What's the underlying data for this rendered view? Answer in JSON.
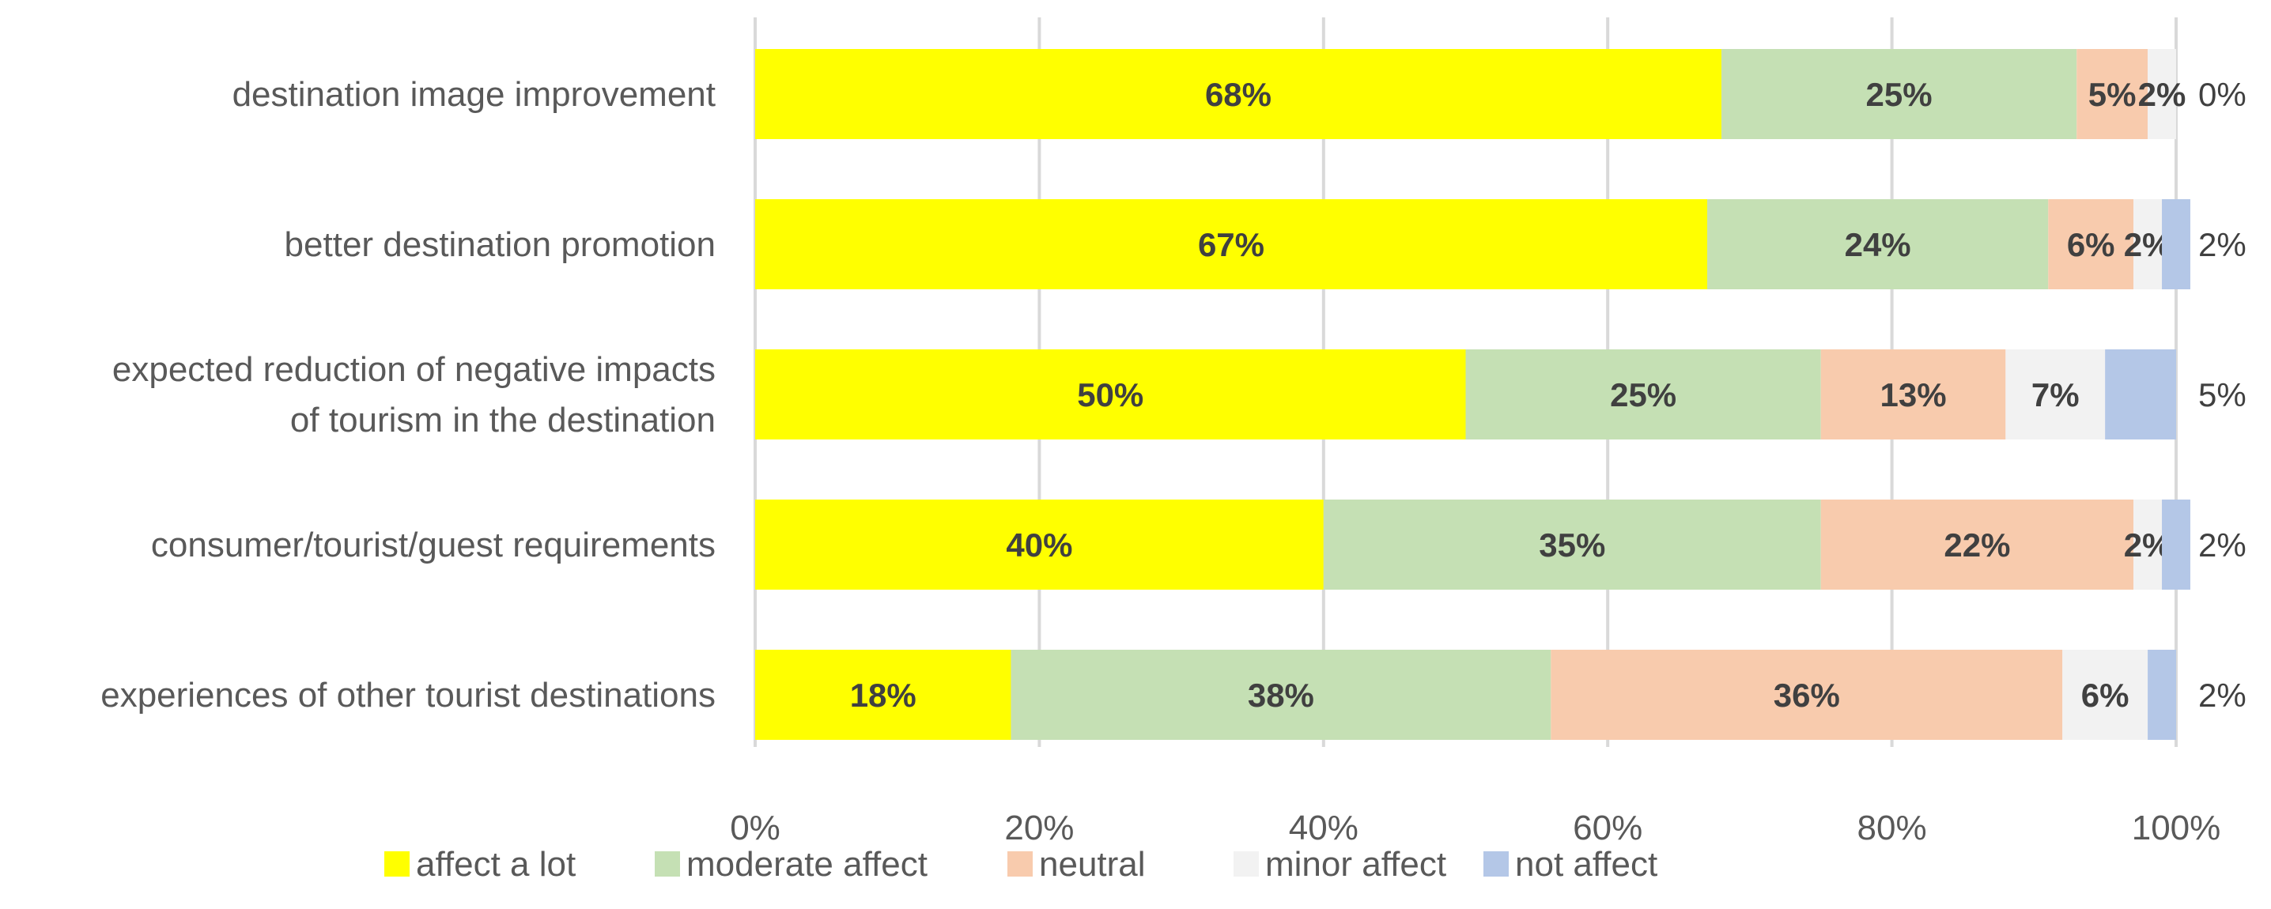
{
  "chart_data": {
    "type": "bar",
    "orientation": "horizontal",
    "stacked": true,
    "categories": [
      [
        "destination image improvement"
      ],
      [
        "better destination promotion"
      ],
      [
        "expected reduction of negative impacts",
        "of tourism in the destination"
      ],
      [
        "consumer/tourist/guest requirements"
      ],
      [
        "experiences of other tourist destinations"
      ]
    ],
    "series": [
      {
        "name": "affect a lot",
        "color": "#ffff00",
        "values": [
          68,
          67,
          50,
          40,
          18
        ],
        "labels": [
          "68%",
          "67%",
          "50%",
          "40%",
          "18%"
        ]
      },
      {
        "name": "moderate affect",
        "color": "#c5e0b4",
        "values": [
          25,
          24,
          25,
          35,
          38
        ],
        "labels": [
          "25%",
          "24%",
          "25%",
          "35%",
          "38%"
        ]
      },
      {
        "name": "neutral",
        "color": "#f8cbad",
        "values": [
          5,
          6,
          13,
          22,
          36
        ],
        "labels": [
          "5%",
          "6%",
          "13%",
          "22%",
          "36%"
        ]
      },
      {
        "name": "minor affect",
        "color": "#f2f2f2",
        "values": [
          2,
          2,
          7,
          2,
          6
        ],
        "labels": [
          "2%",
          "2%",
          "7%",
          "2%",
          "6%"
        ]
      },
      {
        "name": "not affect",
        "color": "#b4c7e7",
        "values": [
          0,
          2,
          5,
          2,
          2
        ],
        "labels": [
          "0%",
          "2%",
          "5%",
          "2%",
          "2%"
        ]
      }
    ],
    "xlim": [
      0,
      100
    ],
    "xticks": [
      0,
      20,
      40,
      60,
      80,
      100
    ],
    "xtick_labels": [
      "0%",
      "20%",
      "40%",
      "60%",
      "80%",
      "100%"
    ],
    "grid": true,
    "legend_position": "bottom",
    "title": "",
    "xlabel": "",
    "ylabel": ""
  }
}
